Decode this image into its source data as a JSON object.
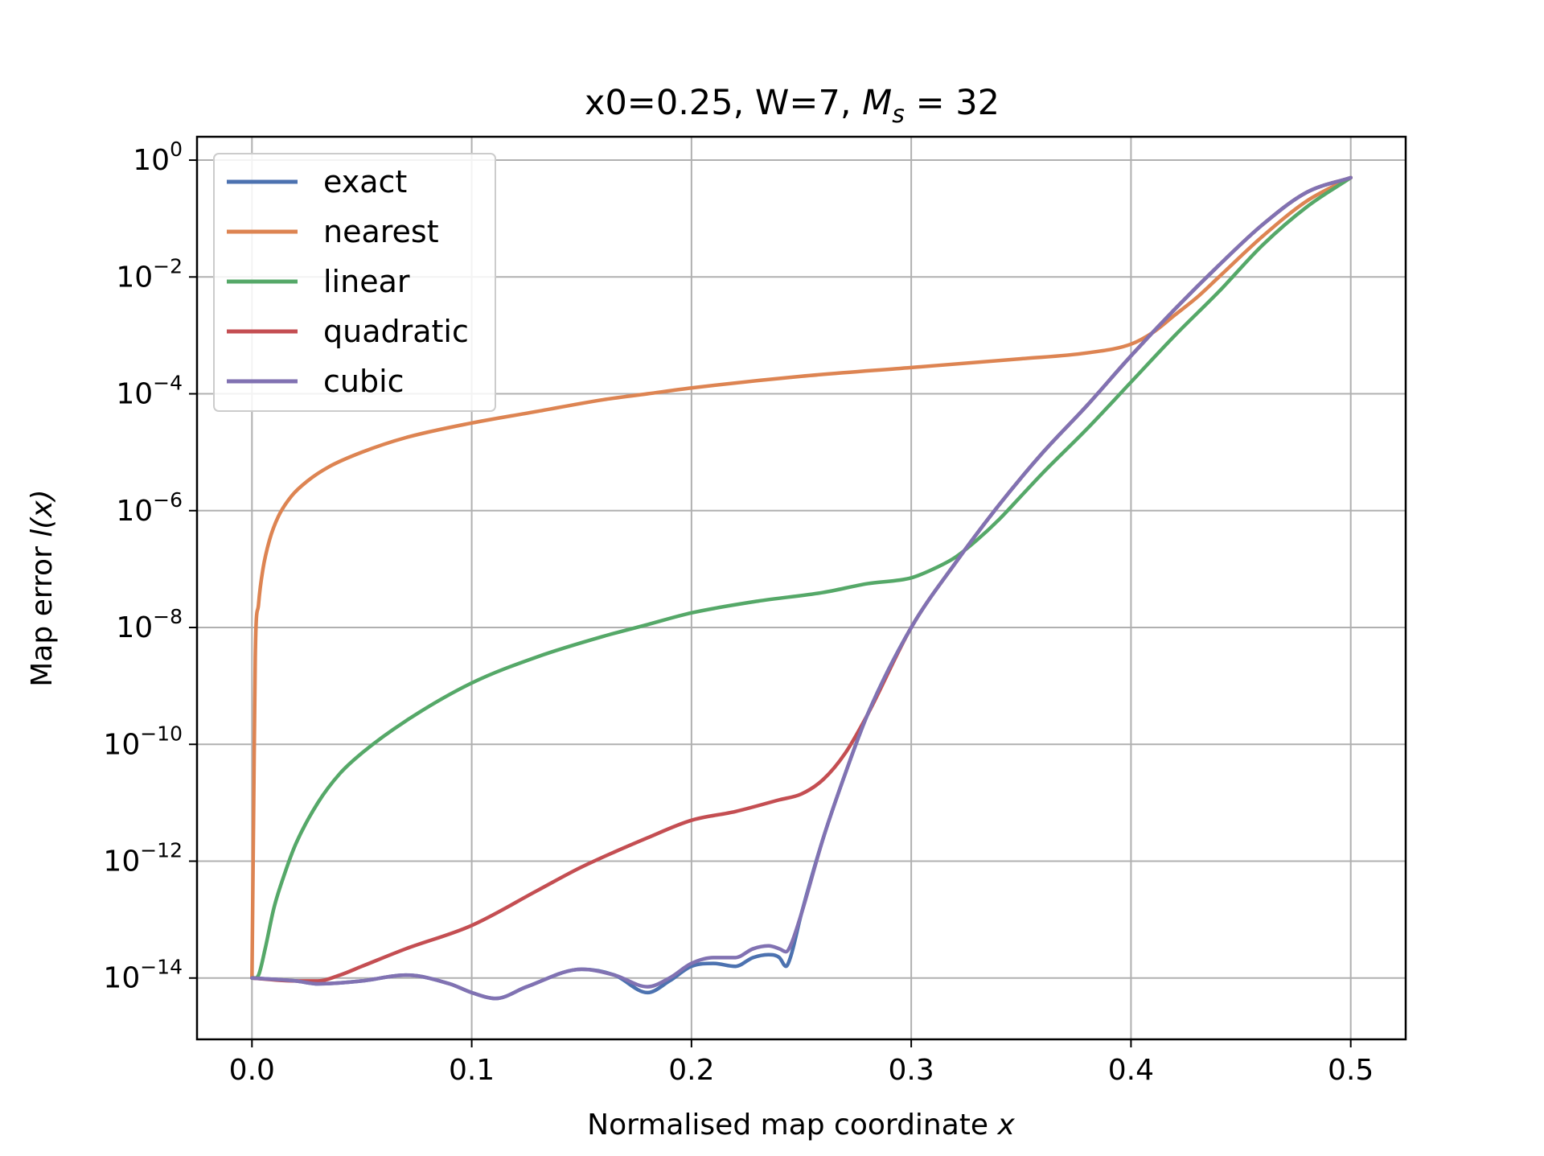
{
  "chart_data": {
    "type": "line",
    "title": "x0=0.25, W=7, M_s = 32",
    "title_parts": {
      "main": "x0=0.25, W=7, ",
      "symbol": "M",
      "subscript": "s",
      "equals": " = ",
      "value": "32"
    },
    "xlabel": "Normalised map coordinate ",
    "xlabel_var": "x",
    "ylabel": "Map error ",
    "ylabel_var": "l(x)",
    "xscale": "linear",
    "yscale": "log",
    "xlim": [
      -0.025,
      0.525
    ],
    "ylim_log10": [
      -15.05,
      0.4
    ],
    "xticks": [
      0.0,
      0.1,
      0.2,
      0.3,
      0.4,
      0.5
    ],
    "xtick_labels": [
      "0.0",
      "0.1",
      "0.2",
      "0.3",
      "0.4",
      "0.5"
    ],
    "yticks_log10": [
      0,
      -2,
      -4,
      -6,
      -8,
      -10,
      -12,
      -14
    ],
    "ytick_labels": [
      {
        "base": "10",
        "exp": "0"
      },
      {
        "base": "10",
        "exp": "−2"
      },
      {
        "base": "10",
        "exp": "−4"
      },
      {
        "base": "10",
        "exp": "−6"
      },
      {
        "base": "10",
        "exp": "−8"
      },
      {
        "base": "10",
        "exp": "−10"
      },
      {
        "base": "10",
        "exp": "−12"
      },
      {
        "base": "10",
        "exp": "−14"
      }
    ],
    "grid": true,
    "legend_position": "upper-left",
    "series": [
      {
        "name": "exact",
        "color": "#4c72b0",
        "x": [
          0.0,
          0.02,
          0.03,
          0.05,
          0.07,
          0.09,
          0.1,
          0.111,
          0.125,
          0.15,
          0.165,
          0.18,
          0.19,
          0.2,
          0.21,
          0.22,
          0.228,
          0.235,
          0.24,
          0.243,
          0.245,
          0.25,
          0.26,
          0.27,
          0.28,
          0.3,
          0.32,
          0.34,
          0.36,
          0.38,
          0.4,
          0.42,
          0.44,
          0.46,
          0.48,
          0.5
        ],
        "log10_values": [
          -14.0,
          -14.05,
          -14.1,
          -14.05,
          -13.95,
          -14.1,
          -14.25,
          -14.35,
          -14.15,
          -13.85,
          -13.95,
          -14.25,
          -14.05,
          -13.8,
          -13.75,
          -13.8,
          -13.65,
          -13.6,
          -13.65,
          -13.8,
          -13.65,
          -12.9,
          -11.6,
          -10.5,
          -9.5,
          -8.0,
          -6.9,
          -5.9,
          -5.0,
          -4.2,
          -3.35,
          -2.55,
          -1.8,
          -1.1,
          -0.55,
          -0.3
        ]
      },
      {
        "name": "nearest",
        "color": "#dd8452",
        "x": [
          0.0,
          0.0008,
          0.0015,
          0.003,
          0.005,
          0.008,
          0.012,
          0.018,
          0.025,
          0.035,
          0.05,
          0.07,
          0.1,
          0.13,
          0.16,
          0.18,
          0.2,
          0.25,
          0.3,
          0.35,
          0.38,
          0.4,
          0.41,
          0.42,
          0.43,
          0.44,
          0.46,
          0.48,
          0.5
        ],
        "log10_values": [
          -14.0,
          -11.0,
          -8.5,
          -7.6,
          -7.0,
          -6.5,
          -6.1,
          -5.75,
          -5.5,
          -5.25,
          -5.0,
          -4.75,
          -4.5,
          -4.3,
          -4.1,
          -4.0,
          -3.9,
          -3.7,
          -3.55,
          -3.4,
          -3.3,
          -3.15,
          -2.95,
          -2.65,
          -2.35,
          -2.0,
          -1.3,
          -0.7,
          -0.3
        ]
      },
      {
        "name": "linear",
        "color": "#55a868",
        "x": [
          0.0,
          0.003,
          0.006,
          0.01,
          0.015,
          0.02,
          0.03,
          0.04,
          0.05,
          0.07,
          0.1,
          0.13,
          0.16,
          0.18,
          0.2,
          0.23,
          0.26,
          0.28,
          0.3,
          0.31,
          0.32,
          0.33,
          0.34,
          0.35,
          0.36,
          0.38,
          0.4,
          0.42,
          0.44,
          0.46,
          0.48,
          0.5
        ],
        "log10_values": [
          -14.0,
          -13.95,
          -13.5,
          -12.8,
          -12.2,
          -11.7,
          -11.0,
          -10.5,
          -10.15,
          -9.6,
          -8.95,
          -8.5,
          -8.15,
          -7.95,
          -7.75,
          -7.55,
          -7.4,
          -7.25,
          -7.15,
          -7.0,
          -6.8,
          -6.5,
          -6.15,
          -5.75,
          -5.35,
          -4.6,
          -3.8,
          -3.0,
          -2.25,
          -1.45,
          -0.8,
          -0.3
        ]
      },
      {
        "name": "quadratic",
        "color": "#c44e52",
        "x": [
          0.0,
          0.02,
          0.03,
          0.04,
          0.05,
          0.07,
          0.1,
          0.13,
          0.15,
          0.18,
          0.2,
          0.22,
          0.24,
          0.25,
          0.26,
          0.27,
          0.28,
          0.3,
          0.32,
          0.34,
          0.36,
          0.38,
          0.4,
          0.42,
          0.44,
          0.46,
          0.48,
          0.5
        ],
        "log10_values": [
          -14.0,
          -14.05,
          -14.05,
          -13.95,
          -13.8,
          -13.5,
          -13.1,
          -12.5,
          -12.1,
          -11.6,
          -11.3,
          -11.15,
          -10.95,
          -10.85,
          -10.6,
          -10.15,
          -9.5,
          -8.0,
          -6.9,
          -5.9,
          -5.0,
          -4.2,
          -3.35,
          -2.55,
          -1.8,
          -1.1,
          -0.55,
          -0.3
        ]
      },
      {
        "name": "cubic",
        "color": "#8172b2",
        "x": [
          0.0,
          0.02,
          0.03,
          0.05,
          0.07,
          0.09,
          0.1,
          0.111,
          0.125,
          0.15,
          0.165,
          0.18,
          0.19,
          0.2,
          0.21,
          0.22,
          0.228,
          0.235,
          0.24,
          0.243,
          0.245,
          0.25,
          0.26,
          0.27,
          0.28,
          0.3,
          0.32,
          0.34,
          0.36,
          0.38,
          0.4,
          0.42,
          0.44,
          0.46,
          0.48,
          0.5
        ],
        "log10_values": [
          -14.0,
          -14.05,
          -14.1,
          -14.05,
          -13.95,
          -14.1,
          -14.25,
          -14.35,
          -14.15,
          -13.85,
          -13.95,
          -14.15,
          -14.0,
          -13.75,
          -13.65,
          -13.65,
          -13.5,
          -13.45,
          -13.5,
          -13.55,
          -13.45,
          -12.9,
          -11.6,
          -10.5,
          -9.5,
          -8.0,
          -6.9,
          -5.9,
          -5.0,
          -4.2,
          -3.35,
          -2.55,
          -1.8,
          -1.1,
          -0.55,
          -0.3
        ]
      }
    ]
  }
}
